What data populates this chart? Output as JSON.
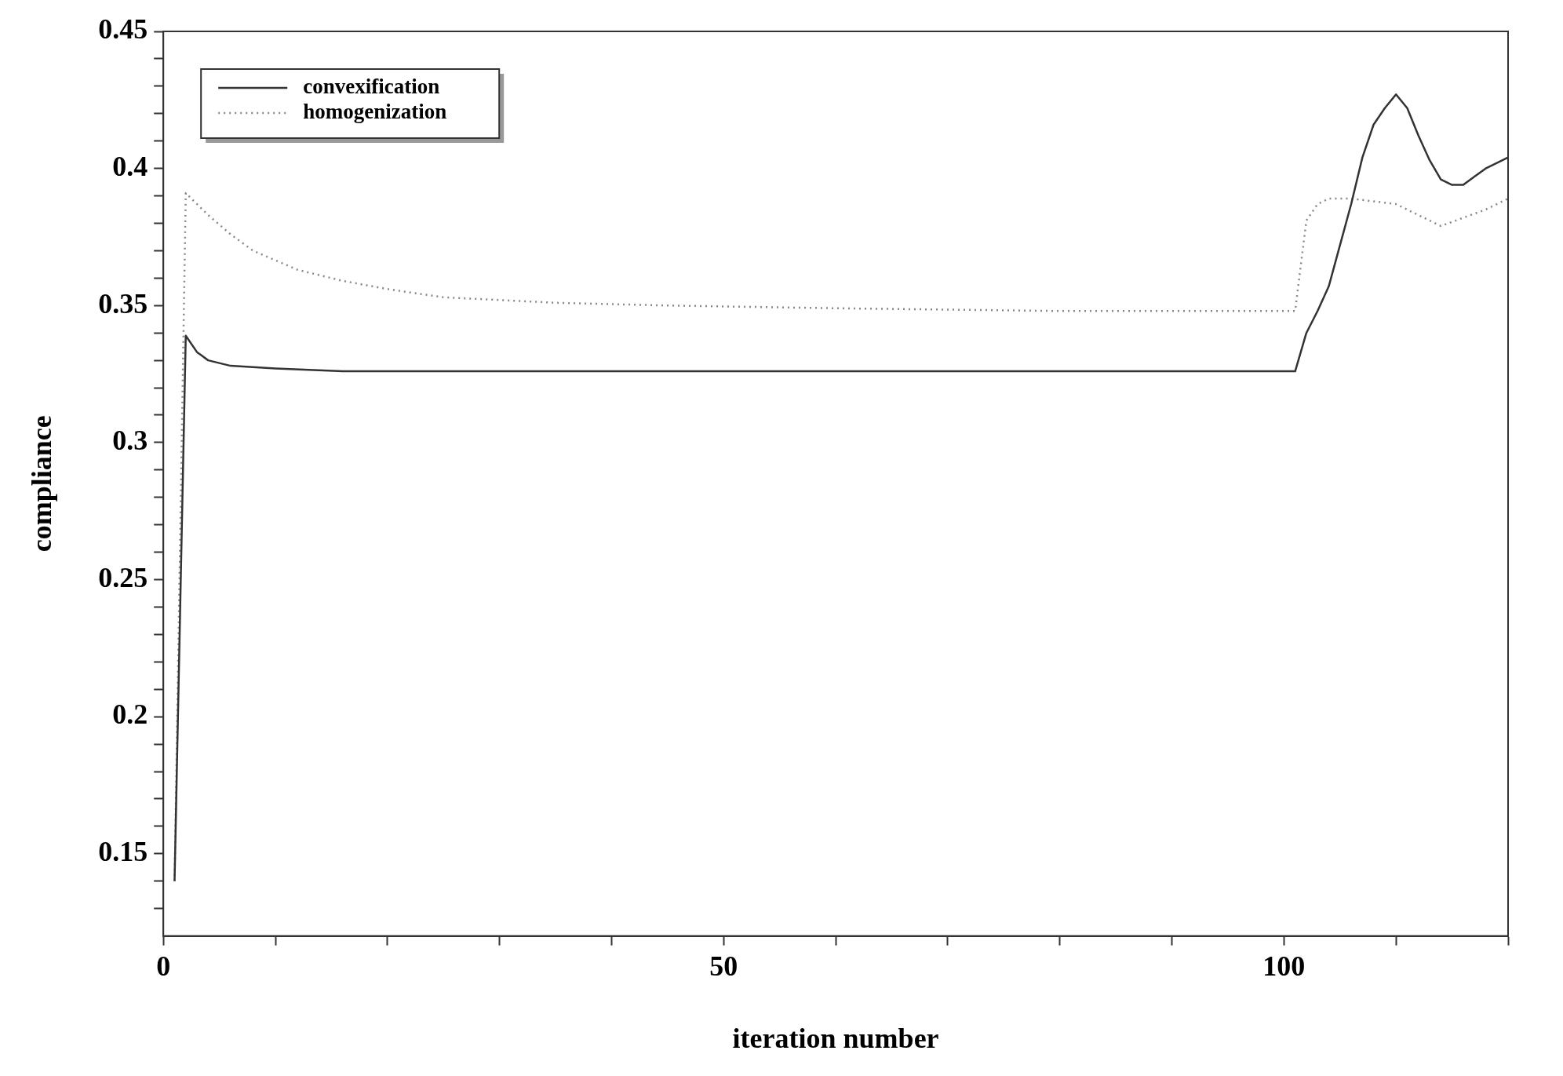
{
  "chart_data": {
    "type": "line",
    "xlabel": "iteration number",
    "ylabel": "compliance",
    "xlim": [
      0,
      120
    ],
    "ylim": [
      0.12,
      0.45
    ],
    "xticks": [
      0,
      {
        "value": 10,
        "label": null
      },
      {
        "value": 20,
        "label": null
      },
      {
        "value": 30,
        "label": null
      },
      {
        "value": 40,
        "label": null
      },
      50,
      {
        "value": 60,
        "label": null
      },
      {
        "value": 70,
        "label": null
      },
      {
        "value": 80,
        "label": null
      },
      {
        "value": 90,
        "label": null
      },
      100,
      {
        "value": 110,
        "label": null
      },
      {
        "value": 120,
        "label": null
      }
    ],
    "yticks": [
      {
        "value": 0.13,
        "label": null
      },
      {
        "value": 0.14,
        "label": null
      },
      0.15,
      {
        "value": 0.16,
        "label": null
      },
      {
        "value": 0.17,
        "label": null
      },
      {
        "value": 0.18,
        "label": null
      },
      {
        "value": 0.19,
        "label": null
      },
      0.2,
      {
        "value": 0.21,
        "label": null
      },
      {
        "value": 0.22,
        "label": null
      },
      {
        "value": 0.23,
        "label": null
      },
      {
        "value": 0.24,
        "label": null
      },
      0.25,
      {
        "value": 0.26,
        "label": null
      },
      {
        "value": 0.27,
        "label": null
      },
      {
        "value": 0.28,
        "label": null
      },
      {
        "value": 0.29,
        "label": null
      },
      0.3,
      {
        "value": 0.31,
        "label": null
      },
      {
        "value": 0.32,
        "label": null
      },
      {
        "value": 0.33,
        "label": null
      },
      {
        "value": 0.34,
        "label": null
      },
      0.35,
      {
        "value": 0.36,
        "label": null
      },
      {
        "value": 0.37,
        "label": null
      },
      {
        "value": 0.38,
        "label": null
      },
      {
        "value": 0.39,
        "label": null
      },
      0.4,
      {
        "value": 0.41,
        "label": null
      },
      {
        "value": 0.42,
        "label": null
      },
      {
        "value": 0.43,
        "label": null
      },
      {
        "value": 0.44,
        "label": null
      },
      0.45
    ],
    "grid": false,
    "legend": "top left",
    "marker": "none",
    "series": [
      {
        "name": "convexification",
        "color": "#333333",
        "line_style": "solid",
        "x": [
          1,
          2,
          3,
          4,
          6,
          10,
          16,
          25,
          40,
          60,
          80,
          101,
          102,
          103,
          104,
          105,
          106,
          107,
          108,
          109,
          110,
          111,
          112,
          113,
          114,
          115,
          116,
          117,
          118,
          119,
          120
        ],
        "values": [
          0.14,
          0.339,
          0.333,
          0.33,
          0.328,
          0.327,
          0.326,
          0.326,
          0.326,
          0.326,
          0.326,
          0.326,
          0.34,
          0.348,
          0.357,
          0.372,
          0.387,
          0.404,
          0.416,
          0.422,
          0.427,
          0.422,
          0.412,
          0.403,
          0.396,
          0.394,
          0.394,
          0.397,
          0.4,
          0.402,
          0.404
        ]
      },
      {
        "name": "homogenization",
        "color": "#888888",
        "line_style": "dotted",
        "x": [
          1,
          2,
          4,
          6,
          8,
          12,
          16,
          20,
          25,
          30,
          35,
          45,
          60,
          80,
          101,
          102,
          103,
          104,
          106,
          108,
          110,
          112,
          114,
          116,
          118,
          120
        ],
        "values": [
          0.14,
          0.391,
          0.383,
          0.376,
          0.37,
          0.363,
          0.359,
          0.356,
          0.353,
          0.352,
          0.351,
          0.35,
          0.349,
          0.348,
          0.348,
          0.381,
          0.387,
          0.389,
          0.389,
          0.388,
          0.387,
          0.383,
          0.379,
          0.382,
          0.385,
          0.389
        ]
      }
    ]
  }
}
